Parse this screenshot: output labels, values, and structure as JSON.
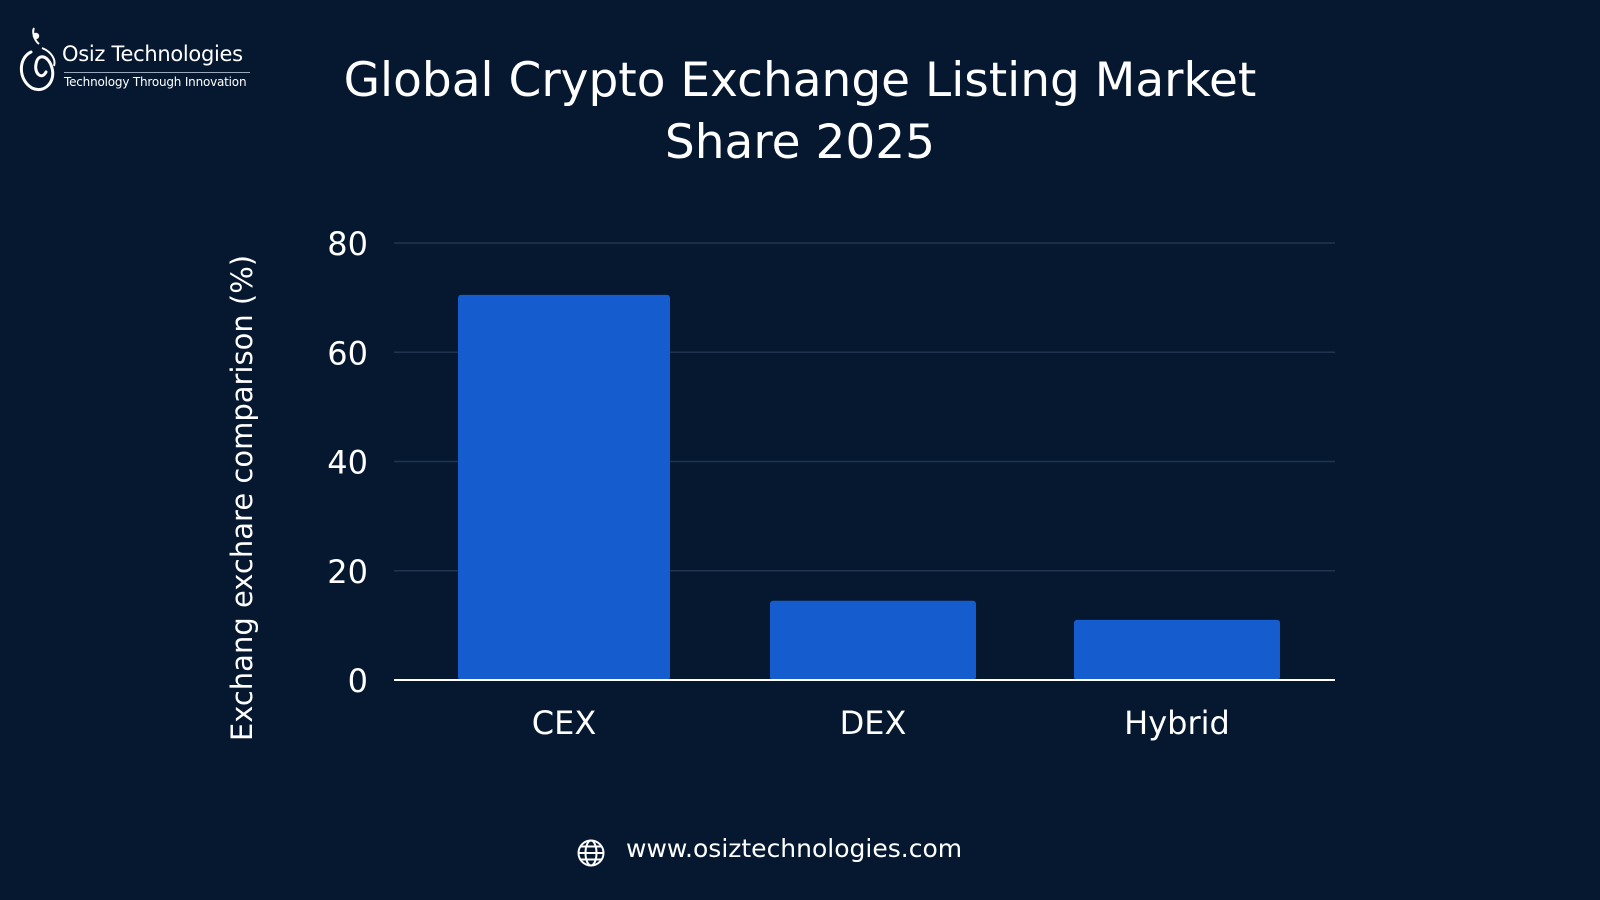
{
  "brand": {
    "name": "Osiz Technologies",
    "tagline": "Technology Through Innovation"
  },
  "colors": {
    "background": "#061830",
    "bar": "#155ccf",
    "grid": "#20344f",
    "text": "#ffffff"
  },
  "footer": {
    "website": "www.osiztechnologies.com",
    "icon": "globe-icon"
  },
  "chart_data": {
    "type": "bar",
    "title": "Global Crypto Exchange Listing Market Share 2025",
    "title_lines": [
      "Global Crypto Exchange Listing Market",
      "Share 2025"
    ],
    "xlabel": "",
    "ylabel": "Exchang exchare comparison (%)",
    "categories": [
      "CEX",
      "DEX",
      "Hybrid"
    ],
    "values": [
      70.5,
      14.5,
      11
    ],
    "ylim": [
      0,
      80
    ],
    "yticks": [
      "0",
      "20",
      "40",
      "60",
      "80"
    ],
    "grid": true,
    "legend": "none"
  }
}
